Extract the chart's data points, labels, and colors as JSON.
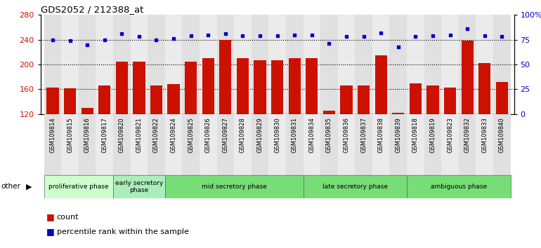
{
  "title": "GDS2052 / 212388_at",
  "samples": [
    "GSM109814",
    "GSM109815",
    "GSM109816",
    "GSM109817",
    "GSM109820",
    "GSM109821",
    "GSM109822",
    "GSM109824",
    "GSM109825",
    "GSM109826",
    "GSM109827",
    "GSM109828",
    "GSM109829",
    "GSM109830",
    "GSM109831",
    "GSM109834",
    "GSM109835",
    "GSM109836",
    "GSM109837",
    "GSM109838",
    "GSM109839",
    "GSM109818",
    "GSM109819",
    "GSM109823",
    "GSM109832",
    "GSM109833",
    "GSM109840"
  ],
  "counts": [
    163,
    162,
    130,
    166,
    205,
    205,
    166,
    168,
    205,
    210,
    240,
    210,
    207,
    207,
    210,
    210,
    126,
    166,
    166,
    215,
    122,
    170,
    166,
    163,
    238,
    202,
    172
  ],
  "percentile": [
    75,
    74,
    70,
    75,
    81,
    78,
    75,
    76,
    79,
    80,
    81,
    79,
    79,
    79,
    80,
    80,
    71,
    78,
    78,
    82,
    68,
    78,
    79,
    80,
    86,
    79,
    78
  ],
  "bar_color": "#cc1100",
  "dot_color": "#0000cc",
  "ylim_left": [
    120,
    280
  ],
  "ylim_right": [
    0,
    100
  ],
  "yticks_left": [
    120,
    160,
    200,
    240,
    280
  ],
  "yticks_right": [
    0,
    25,
    50,
    75,
    100
  ],
  "yticklabels_right": [
    "0",
    "25",
    "50",
    "75",
    "100%"
  ],
  "grid_lines": [
    160,
    200,
    240
  ],
  "phases": [
    {
      "label": "proliferative phase",
      "start": 0,
      "end": 4,
      "color": "#ccffcc"
    },
    {
      "label": "early secretory\nphase",
      "start": 4,
      "end": 7,
      "color": "#aaeebb"
    },
    {
      "label": "mid secretory phase",
      "start": 7,
      "end": 15,
      "color": "#77dd77"
    },
    {
      "label": "late secretory phase",
      "start": 15,
      "end": 21,
      "color": "#77dd77"
    },
    {
      "label": "ambiguous phase",
      "start": 21,
      "end": 27,
      "color": "#77dd77"
    }
  ],
  "legend_count_label": "count",
  "legend_pct_label": "percentile rank within the sample",
  "other_label": "other"
}
